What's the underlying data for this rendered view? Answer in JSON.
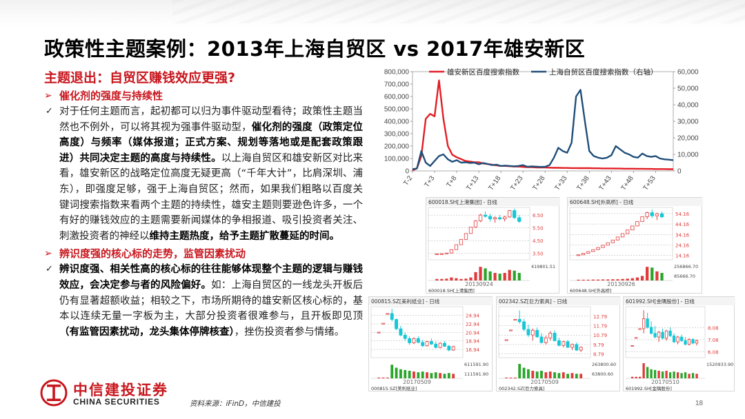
{
  "title": "政策性主题案例：2013年上海自贸区 vs 2017年雄安新区",
  "section_heading": "主题退出：自贸区赚钱效应更强?",
  "bullets": {
    "sub1_title": "催化剂的强度与持续性",
    "sub1_parts": [
      {
        "t": "对于任何主题而言，起初都可以归为事件驱动型看待；政策性主题当然也不例外，可以将其视为强事件驱动型，",
        "b": false
      },
      {
        "t": "催化剂的强度（政策定位高度）与频率（媒体报道；正式方案、规划等落地或是配套政策跟进）共同决定主题的高度与持续性。",
        "b": true
      },
      {
        "t": "以上海自贸区和雄安新区对比来看，雄安新区的战略定位高度无疑更高（“千年大计”，比肩深圳、浦东），即强度足够，强于上海自贸区；然而，如果我们粗略以百度关键词搜索指数来看两个主题的持续性，雄安主题则要逊色许多，一个有好的赚钱效应的主题需要新闻媒体的争相报道、吸引投资者关注、刺激投资者的神经以",
        "b": false
      },
      {
        "t": "维持主题热度，给予主题扩散蔓延的时间。",
        "b": true
      }
    ],
    "sub2_title": "辨识度强的核心标的走势，监管因素扰动",
    "sub2_parts": [
      {
        "t": "辨识度强、相关性高的核心标的往往能够体现整个主题的逻辑与赚钱效应，会决定参与者的风险偏好。",
        "b": true
      },
      {
        "t": "如：上海自贸区的一线龙头开板后仍有显著超额收益；相较之下，市场所期待的雄安新区核心标的，基本以连续无量一字板为主，大部分投资者很难参与，且开板即见顶",
        "b": false
      },
      {
        "t": "（有监管因素扰动，龙头集体停牌核查）",
        "b": true
      },
      {
        "t": "，挫伤投资者参与情绪。",
        "b": false
      }
    ]
  },
  "footer": {
    "logo_cn": "中信建投证券",
    "logo_en": "CHINA SECURITIES",
    "source": "资料来源：iFinD，中信建投",
    "page_number": "18"
  },
  "colors": {
    "brand_red": "#c8161d",
    "series_red": "#e21d24",
    "series_blue": "#1f4e79",
    "candle_red": "#e03a3a",
    "candle_cyan": "#16c7d6",
    "volume_green": "#2aa52a"
  },
  "chart_data": [
    {
      "type": "line",
      "legend": [
        "雄安新区百度搜索指数",
        "上海自贸区百度搜索指数（右轴）"
      ],
      "y_left_ticks": [
        "0",
        "100,000",
        "200,000",
        "300,000",
        "400,000",
        "500,000",
        "600,000",
        "700,000",
        "800,000"
      ],
      "y_right_ticks": [
        "0",
        "10,000",
        "20,000",
        "30,000",
        "40,000",
        "50,000",
        "60,000"
      ],
      "ylim_left": [
        0,
        800000
      ],
      "ylim_right": [
        0,
        60000
      ],
      "x_ticks": [
        "T-2",
        "T+3",
        "T+8",
        "T+13",
        "T+18",
        "T+23",
        "T+28",
        "T+33",
        "T+38",
        "T+43",
        "T+48",
        "T+53"
      ],
      "x_range": [
        -2,
        57
      ],
      "series": [
        {
          "name": "雄安新区百度搜索指数",
          "axis": "left",
          "x": [
            -2,
            -1,
            0,
            1,
            2,
            3,
            4,
            5,
            6,
            7,
            8,
            9,
            10,
            11,
            12,
            13,
            14,
            15,
            16,
            17,
            18,
            19,
            20,
            21,
            22,
            23,
            24,
            25,
            26,
            27,
            28,
            29,
            30,
            31,
            32,
            33,
            34,
            35,
            36,
            37,
            38,
            39,
            40,
            41,
            42,
            43,
            44,
            45,
            46,
            47,
            48,
            49,
            50,
            51,
            52,
            53,
            54,
            55,
            56,
            57
          ],
          "y": [
            5000,
            20000,
            120000,
            420000,
            460000,
            440000,
            730000,
            420000,
            200000,
            130000,
            110000,
            95000,
            80000,
            75000,
            70000,
            70000,
            60000,
            55000,
            50000,
            45000,
            40000,
            40000,
            38000,
            35000,
            35000,
            32000,
            30000,
            30000,
            28000,
            28000,
            27000,
            26000,
            25000,
            25000,
            24000,
            24000,
            23000,
            23000,
            22000,
            22000,
            22000,
            21000,
            21000,
            20000,
            20000,
            20000,
            19000,
            19000,
            18000,
            18000,
            18000,
            17000,
            17000,
            16000,
            16000,
            15000,
            15000,
            15000,
            14000,
            14000
          ]
        },
        {
          "name": "上海自贸区百度搜索指数（右轴）",
          "axis": "right",
          "x": [
            -2,
            -1,
            0,
            1,
            2,
            3,
            4,
            5,
            6,
            7,
            8,
            9,
            10,
            11,
            12,
            13,
            14,
            15,
            16,
            17,
            18,
            19,
            20,
            21,
            22,
            23,
            24,
            25,
            26,
            27,
            28,
            29,
            30,
            31,
            32,
            33,
            34,
            35,
            36,
            37,
            38,
            39,
            40,
            41,
            42,
            43,
            44,
            45,
            46,
            47,
            48,
            49,
            50,
            51,
            52,
            53,
            54,
            55,
            56,
            57
          ],
          "y": [
            1000,
            1500,
            12000,
            5000,
            3000,
            6000,
            9000,
            10000,
            7000,
            5500,
            6500,
            5000,
            5200,
            4800,
            5000,
            4000,
            4800,
            4200,
            3500,
            3800,
            3000,
            3200,
            3000,
            2800,
            3000,
            3500,
            2500,
            2700,
            2600,
            2400,
            2500,
            3500,
            8000,
            14000,
            12000,
            11000,
            17000,
            45000,
            49000,
            30000,
            12000,
            9000,
            8000,
            7500,
            8000,
            9500,
            15000,
            13000,
            11000,
            10000,
            8500,
            8000,
            10500,
            9000,
            8500,
            9000,
            7500,
            7000,
            6800,
            6500
          ]
        }
      ]
    },
    {
      "type": "candlestick",
      "code": "600018.SH[上港集团] - 日线",
      "bottom_label": "600018.SH[上港集团]",
      "date": "20130924",
      "price_ticks": [
        "6.50",
        "5.50",
        "4.50",
        "3.50"
      ],
      "volume_ticks": [
        "419801.51"
      ],
      "ylim": [
        3.0,
        7.1
      ],
      "candles": [
        [
          3.45,
          3.5,
          3.42,
          3.47
        ],
        [
          3.47,
          3.52,
          3.45,
          3.48
        ],
        [
          3.48,
          3.55,
          3.46,
          3.53
        ],
        [
          3.53,
          3.8,
          3.52,
          3.8
        ],
        [
          3.8,
          4.18,
          3.8,
          4.18
        ],
        [
          4.18,
          4.6,
          4.18,
          4.6
        ],
        [
          4.6,
          5.06,
          4.6,
          5.06
        ],
        [
          5.06,
          5.56,
          5.06,
          5.56
        ],
        [
          5.56,
          6.1,
          5.5,
          6.05
        ],
        [
          6.05,
          6.6,
          5.95,
          6.5
        ],
        [
          6.5,
          6.8,
          6.3,
          6.4
        ],
        [
          6.4,
          6.6,
          6.0,
          6.2
        ],
        [
          6.2,
          6.4,
          5.9,
          6.3
        ],
        [
          6.3,
          6.5,
          6.1,
          6.2
        ],
        [
          6.2,
          6.45,
          6.0,
          6.35
        ],
        [
          6.35,
          6.9,
          6.3,
          6.85
        ],
        [
          6.85,
          7.0,
          6.2,
          6.3
        ],
        [
          6.3,
          6.5,
          5.9,
          6.0
        ]
      ],
      "volumes": [
        0.1,
        0.1,
        0.12,
        0.2,
        0.15,
        0.1,
        0.12,
        0.2,
        0.55,
        0.9,
        0.8,
        0.6,
        0.5,
        0.45,
        0.5,
        0.7,
        0.65,
        0.5
      ]
    },
    {
      "type": "candlestick",
      "code": "600648.SH[外高桥] - 日线",
      "bottom_label": "600648.SH[外高桥]",
      "date": "20130926",
      "price_ticks": [
        "54.16",
        "44.16",
        "34.16",
        "24.16",
        "14.16"
      ],
      "volume_ticks": [
        "256866.70",
        "85666.70"
      ],
      "ylim": [
        10,
        60
      ],
      "candles": [
        [
          14.5,
          15,
          14,
          14.8
        ],
        [
          14.8,
          16.3,
          14.8,
          16.3
        ],
        [
          16.3,
          17.9,
          16.3,
          17.9
        ],
        [
          17.9,
          19.7,
          17.9,
          19.7
        ],
        [
          19.7,
          21.7,
          19.7,
          21.7
        ],
        [
          21.7,
          23.9,
          21.7,
          23.9
        ],
        [
          23.9,
          26.3,
          23.9,
          26.3
        ],
        [
          26.3,
          28.9,
          26.3,
          28.9
        ],
        [
          28.9,
          31.8,
          28.9,
          31.8
        ],
        [
          31.8,
          35.0,
          31.8,
          35.0
        ],
        [
          35.0,
          38.5,
          35.0,
          38.5
        ],
        [
          38.5,
          42.3,
          38.5,
          42.3
        ],
        [
          42.3,
          46.5,
          42.3,
          46.5
        ],
        [
          46.5,
          51.2,
          46.5,
          51.2
        ],
        [
          51.2,
          56.0,
          49.0,
          55.0
        ],
        [
          55.0,
          58.0,
          50.0,
          52.0
        ],
        [
          52.0,
          55.0,
          48.0,
          54.0
        ],
        [
          54.0,
          56.0,
          50.0,
          51.0
        ]
      ],
      "volumes": [
        0.05,
        0.05,
        0.05,
        0.06,
        0.06,
        0.07,
        0.07,
        0.08,
        0.08,
        0.1,
        0.12,
        0.15,
        0.2,
        0.3,
        0.9,
        0.85,
        0.6,
        0.5
      ]
    },
    {
      "type": "candlestick",
      "code": "000815.SZ[美利纸业] - 日线",
      "bottom_label": "000815.SZ[美利纸业]",
      "date": "20170509",
      "price_ticks": [
        "24.94",
        "22.94",
        "20.94",
        "18.94",
        "16.94"
      ],
      "volume_ticks": [
        "611591.90",
        "111591.90"
      ],
      "ylim": [
        15,
        27
      ],
      "candles": [
        [
          21,
          21,
          21,
          21
        ],
        [
          23.1,
          23.1,
          23.1,
          23.1
        ],
        [
          25.4,
          25.4,
          25.4,
          25.4
        ],
        [
          25.4,
          26.5,
          23.5,
          24.0
        ],
        [
          24.0,
          24.2,
          21.5,
          21.8
        ],
        [
          21.8,
          22.5,
          20.0,
          20.3
        ],
        [
          20.3,
          21.0,
          19.0,
          19.5
        ],
        [
          19.5,
          20.0,
          18.0,
          18.5
        ],
        [
          18.5,
          19.8,
          18.2,
          19.5
        ],
        [
          19.5,
          20.0,
          18.4,
          18.6
        ],
        [
          18.6,
          19.2,
          17.5,
          17.8
        ],
        [
          17.8,
          19.0,
          17.6,
          18.8
        ],
        [
          18.8,
          19.5,
          18.0,
          18.2
        ],
        [
          18.2,
          18.8,
          17.2,
          17.4
        ],
        [
          17.4,
          18.6,
          17.2,
          18.4
        ],
        [
          18.4,
          18.9,
          17.5,
          17.7
        ],
        [
          17.7,
          18.0,
          16.5,
          16.8
        ],
        [
          16.8,
          17.8,
          16.6,
          17.6
        ]
      ],
      "volumes": [
        0.05,
        0.05,
        0.05,
        0.9,
        0.7,
        0.6,
        0.55,
        0.5,
        0.45,
        0.4,
        0.45,
        0.4,
        0.35,
        0.4,
        0.35,
        0.3,
        0.35,
        0.3
      ]
    },
    {
      "type": "candlestick",
      "code": "002342.SZ[巨力索具] - 日线",
      "bottom_label": "002342.SZ[巨力索具]",
      "date": "20170509",
      "price_ticks": [
        "12.79",
        "11.79",
        "10.79",
        "9.79",
        "8.79"
      ],
      "volume_ticks": [
        "263800.60",
        "63800.60"
      ],
      "ylim": [
        8.4,
        13.8
      ],
      "candles": [
        [
          10.3,
          10.3,
          10.3,
          10.3
        ],
        [
          11.33,
          11.33,
          11.33,
          11.33
        ],
        [
          12.46,
          12.46,
          12.46,
          12.46
        ],
        [
          12.46,
          13.4,
          12.0,
          12.2
        ],
        [
          12.2,
          12.5,
          11.2,
          11.4
        ],
        [
          11.4,
          11.9,
          10.6,
          10.8
        ],
        [
          10.8,
          11.5,
          10.2,
          11.3
        ],
        [
          11.3,
          11.6,
          10.5,
          10.6
        ],
        [
          10.6,
          11.0,
          9.9,
          10.0
        ],
        [
          10.0,
          10.7,
          9.8,
          10.5
        ],
        [
          10.5,
          11.2,
          10.2,
          11.0
        ],
        [
          11.0,
          11.3,
          10.1,
          10.2
        ],
        [
          10.2,
          10.5,
          9.6,
          9.7
        ],
        [
          9.7,
          10.2,
          9.5,
          10.1
        ],
        [
          10.1,
          10.3,
          9.4,
          9.5
        ],
        [
          9.5,
          9.9,
          9.2,
          9.8
        ],
        [
          9.8,
          10.0,
          9.1,
          9.2
        ],
        [
          9.2,
          9.6,
          9.0,
          9.5
        ]
      ],
      "volumes": [
        0.05,
        0.05,
        0.05,
        0.95,
        0.7,
        0.6,
        0.5,
        0.45,
        0.5,
        0.4,
        0.45,
        0.4,
        0.35,
        0.4,
        0.3,
        0.35,
        0.3,
        0.3
      ]
    },
    {
      "type": "candlestick",
      "code": "601992.SH[金隅股份] - 日线",
      "bottom_label": "601992.SH[金隅股份]",
      "date": "20170510",
      "price_ticks": [
        "8.08",
        "7.08",
        "6.08"
      ],
      "volume_ticks": [
        "1520933.90"
      ],
      "ylim": [
        5.6,
        9.8
      ],
      "candles": [
        [
          6.6,
          6.6,
          6.6,
          6.6
        ],
        [
          7.26,
          7.26,
          7.26,
          7.26
        ],
        [
          7.99,
          7.99,
          7.99,
          7.99
        ],
        [
          7.99,
          9.5,
          7.6,
          8.8
        ],
        [
          8.8,
          9.3,
          8.0,
          8.1
        ],
        [
          8.1,
          8.6,
          7.5,
          7.6
        ],
        [
          7.6,
          8.2,
          7.2,
          7.3
        ],
        [
          7.3,
          7.8,
          6.9,
          7.7
        ],
        [
          7.7,
          8.0,
          7.1,
          7.2
        ],
        [
          7.2,
          7.9,
          7.0,
          7.8
        ],
        [
          7.8,
          8.1,
          7.3,
          7.4
        ],
        [
          7.4,
          7.6,
          6.8,
          6.9
        ],
        [
          6.9,
          7.4,
          6.7,
          7.3
        ],
        [
          7.3,
          7.5,
          6.9,
          7.0
        ],
        [
          7.0,
          7.3,
          6.6,
          6.7
        ],
        [
          6.7,
          7.2,
          6.6,
          7.1
        ],
        [
          7.1,
          7.2,
          6.7,
          6.8
        ],
        [
          6.8,
          7.1,
          6.6,
          7.0
        ]
      ],
      "volumes": [
        0.1,
        0.1,
        0.1,
        1.0,
        0.75,
        0.6,
        0.55,
        0.5,
        0.45,
        0.5,
        0.4,
        0.45,
        0.4,
        0.35,
        0.4,
        0.3,
        0.35,
        0.3
      ]
    }
  ]
}
